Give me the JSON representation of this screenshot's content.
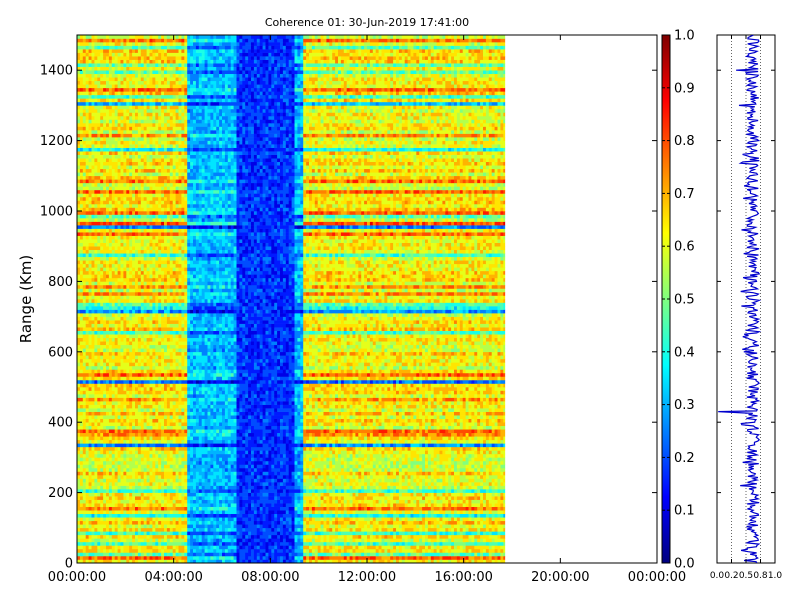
{
  "chart_data": [
    {
      "type": "heatmap",
      "title": "Coherence 01: 30-Jun-2019 17:41:00",
      "xlabel": "",
      "ylabel": "Range (Km)",
      "x_ticks": [
        "00:00:00",
        "04:00:00",
        "08:00:00",
        "12:00:00",
        "16:00:00",
        "20:00:00",
        "00:00:00"
      ],
      "x_range_hours": [
        0,
        24
      ],
      "data_extent_hours": [
        0,
        17.7
      ],
      "y_ticks": [
        0,
        200,
        400,
        600,
        800,
        1000,
        1200,
        1400
      ],
      "y_range": [
        0,
        1500
      ],
      "colormap": "jet",
      "low_coherence_band_hours": [
        4.5,
        9.3
      ],
      "very_low_band_hours": [
        6.6,
        9.0
      ],
      "legend": "none"
    },
    {
      "type": "colorbar",
      "ticks": [
        "0.0",
        "0.1",
        "0.2",
        "0.3",
        "0.4",
        "0.5",
        "0.6",
        "0.7",
        "0.8",
        "0.9",
        "1.0"
      ],
      "range": [
        0,
        1
      ]
    },
    {
      "type": "line",
      "description_axis": "coherence profile vs range",
      "x_ticks": [
        "0.0",
        "0.2",
        "0.5",
        "0.8",
        "1.0"
      ],
      "x_range": [
        0,
        1
      ],
      "y_range": [
        0,
        1500
      ],
      "series_color": "#0000cc",
      "mean_value": 0.62,
      "outliers": [
        {
          "range": 430,
          "value": 0.02
        },
        {
          "range": 1300,
          "value": 0.38
        },
        {
          "range": 1400,
          "value": 0.33
        },
        {
          "range": 220,
          "value": 0.4
        },
        {
          "range": 730,
          "value": 0.42
        }
      ]
    }
  ],
  "colors": {
    "jet_stops": [
      "#00007f",
      "#0000ff",
      "#007fff",
      "#00ffff",
      "#7fff7f",
      "#ffff00",
      "#ff7f00",
      "#ff0000",
      "#7f0000"
    ]
  }
}
